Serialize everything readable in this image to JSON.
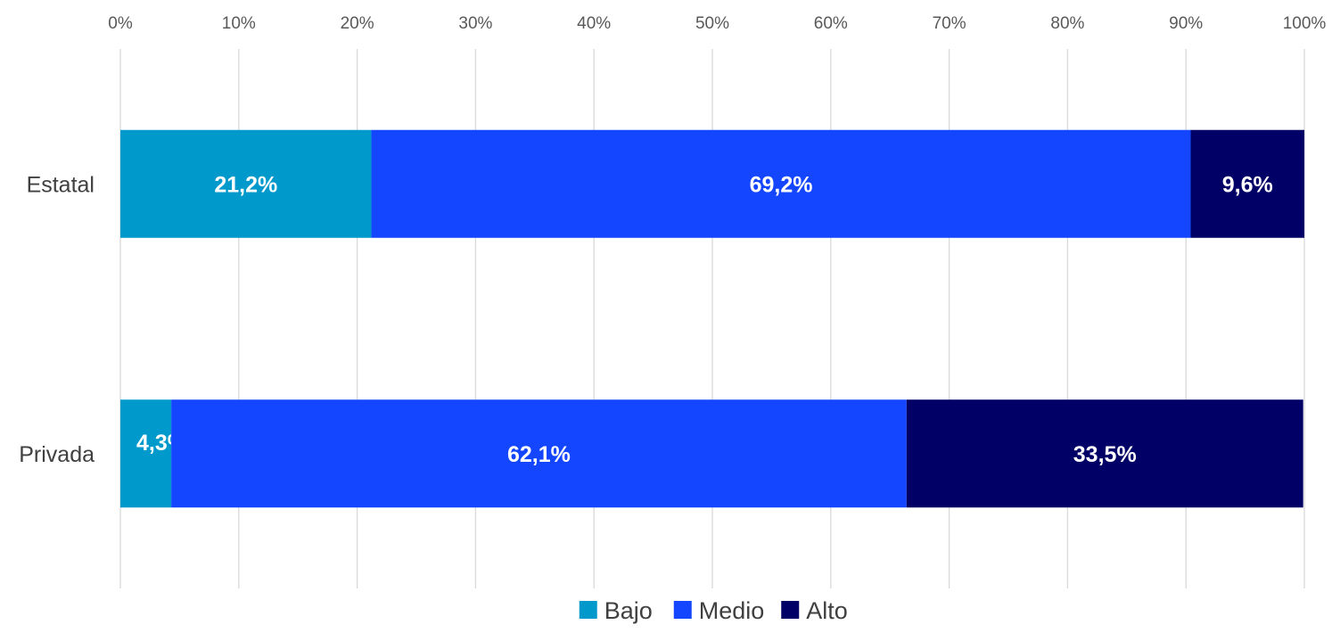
{
  "chart_data": {
    "type": "bar",
    "orientation": "horizontal",
    "stacked": "percent",
    "categories": [
      "Estatal",
      "Privada"
    ],
    "series": [
      {
        "name": "Bajo",
        "color": "#0099CC",
        "values": [
          21.2,
          4.3
        ],
        "labels": [
          "21,2%",
          "4,3%"
        ]
      },
      {
        "name": "Medio",
        "color": "#1446FF",
        "values": [
          69.2,
          62.1
        ],
        "labels": [
          "69,2%",
          "62,1%"
        ]
      },
      {
        "name": "Alto",
        "color": "#000066",
        "values": [
          9.6,
          33.5
        ],
        "labels": [
          "9,6%",
          "33,5%"
        ]
      }
    ],
    "x_ticks": [
      "0%",
      "10%",
      "20%",
      "30%",
      "40%",
      "50%",
      "60%",
      "70%",
      "80%",
      "90%",
      "100%"
    ],
    "xlim": [
      0,
      100
    ],
    "axis_position": "top",
    "grid": true,
    "legend": "bottom",
    "title": "",
    "xlabel": "",
    "ylabel": ""
  }
}
